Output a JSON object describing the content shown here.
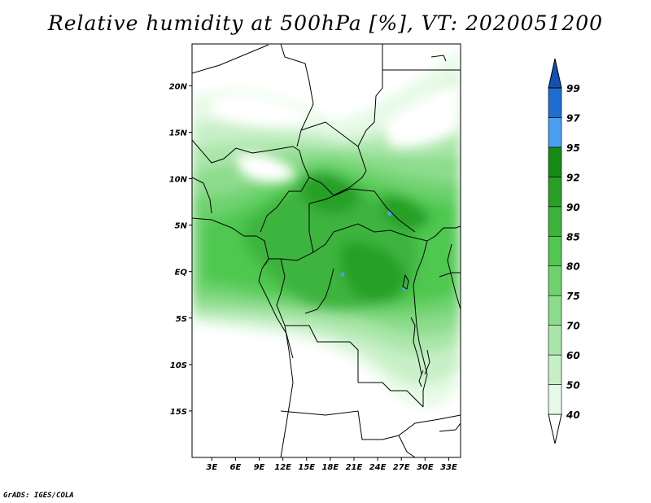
{
  "title": "Relative humidity at 500hPa [%], VT: 2020051200",
  "credit": "GrADS: IGES/COLA",
  "map": {
    "lat_range": [
      -20,
      24.5
    ],
    "lon_range": [
      0.5,
      34.5
    ],
    "lat_ticks": [
      {
        "value": 20,
        "label": "20N"
      },
      {
        "value": 15,
        "label": "15N"
      },
      {
        "value": 10,
        "label": "10N"
      },
      {
        "value": 5,
        "label": "5N"
      },
      {
        "value": 0,
        "label": "EQ"
      },
      {
        "value": -5,
        "label": "5S"
      },
      {
        "value": -10,
        "label": "10S"
      },
      {
        "value": -15,
        "label": "15S"
      }
    ],
    "lon_ticks": [
      {
        "value": 3,
        "label": "3E"
      },
      {
        "value": 6,
        "label": "6E"
      },
      {
        "value": 9,
        "label": "9E"
      },
      {
        "value": 12,
        "label": "12E"
      },
      {
        "value": 15,
        "label": "15E"
      },
      {
        "value": 18,
        "label": "18E"
      },
      {
        "value": 21,
        "label": "21E"
      },
      {
        "value": 24,
        "label": "24E"
      },
      {
        "value": 27,
        "label": "27E"
      },
      {
        "value": 30,
        "label": "30E"
      },
      {
        "value": 33,
        "label": "33E"
      }
    ]
  },
  "colorbar": {
    "levels": [
      "40",
      "50",
      "60",
      "70",
      "75",
      "80",
      "85",
      "90",
      "92",
      "95",
      "97",
      "99"
    ],
    "colors": [
      "#ffffff",
      "#e6fae6",
      "#c8f0c8",
      "#aae6aa",
      "#8cdc8c",
      "#6ed26e",
      "#50c850",
      "#3cb43c",
      "#28a028",
      "#148c14",
      "#4aa0f0",
      "#1e6ed2",
      "#1450b4"
    ]
  }
}
